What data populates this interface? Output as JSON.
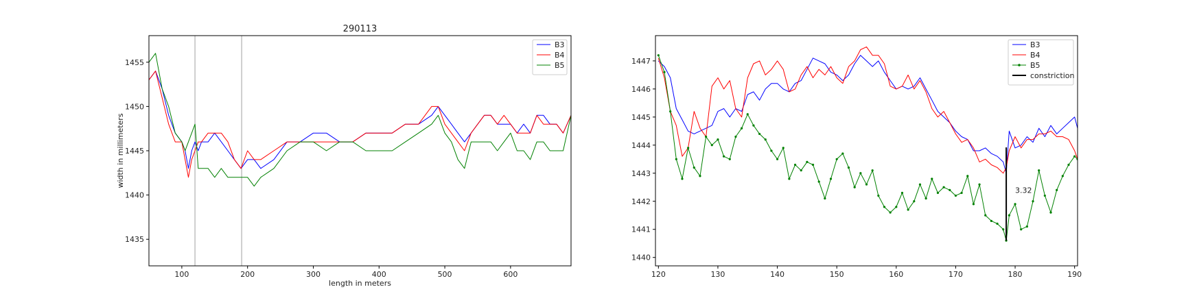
{
  "chart_data": [
    {
      "type": "line",
      "title": "290113",
      "xlabel": "length in meters",
      "ylabel": "width in millimeters",
      "xlim": [
        50,
        692
      ],
      "ylim": [
        1432,
        1458
      ],
      "xticks": [
        100,
        200,
        300,
        400,
        500,
        600
      ],
      "yticks": [
        1435,
        1440,
        1445,
        1450,
        1455
      ],
      "grid": false,
      "legend_position": "top-right",
      "vertical_lines_x": [
        120,
        191
      ],
      "series": [
        {
          "name": "B3",
          "color": "#0000ff",
          "x": [
            50,
            60,
            70,
            80,
            90,
            100,
            105,
            110,
            115,
            120,
            125,
            130,
            140,
            150,
            160,
            170,
            180,
            190,
            200,
            210,
            220,
            240,
            260,
            280,
            300,
            320,
            340,
            360,
            380,
            400,
            420,
            440,
            460,
            480,
            490,
            500,
            510,
            520,
            530,
            540,
            550,
            560,
            570,
            580,
            590,
            600,
            610,
            620,
            630,
            640,
            650,
            660,
            670,
            680,
            692
          ],
          "y": [
            1453,
            1454,
            1452,
            1449,
            1447,
            1446,
            1445,
            1443,
            1445,
            1446,
            1445,
            1446,
            1446,
            1447,
            1446,
            1445,
            1444,
            1443,
            1444,
            1444,
            1443,
            1444,
            1446,
            1446,
            1447,
            1447,
            1446,
            1446,
            1447,
            1447,
            1447,
            1448,
            1448,
            1449,
            1450,
            1449,
            1448,
            1447,
            1446,
            1447,
            1448,
            1449,
            1449,
            1448,
            1448,
            1448,
            1447,
            1448,
            1447,
            1449,
            1449,
            1448,
            1448,
            1447,
            1449
          ]
        },
        {
          "name": "B4",
          "color": "#ff0000",
          "x": [
            50,
            60,
            70,
            80,
            90,
            100,
            105,
            110,
            115,
            120,
            125,
            130,
            140,
            150,
            160,
            170,
            180,
            190,
            200,
            210,
            220,
            240,
            260,
            280,
            300,
            320,
            340,
            360,
            380,
            400,
            420,
            440,
            460,
            480,
            490,
            500,
            510,
            520,
            530,
            540,
            550,
            560,
            570,
            580,
            590,
            600,
            610,
            620,
            630,
            640,
            650,
            660,
            670,
            680,
            692
          ],
          "y": [
            1453,
            1454,
            1451,
            1448,
            1446,
            1446,
            1444,
            1442,
            1444,
            1445,
            1446,
            1446,
            1447,
            1447,
            1447,
            1446,
            1444,
            1443,
            1445,
            1444,
            1444,
            1445,
            1446,
            1446,
            1446,
            1446,
            1446,
            1446,
            1447,
            1447,
            1447,
            1448,
            1448,
            1450,
            1450,
            1448,
            1447,
            1446,
            1445,
            1447,
            1448,
            1449,
            1449,
            1448,
            1449,
            1448,
            1447,
            1447,
            1447,
            1449,
            1448,
            1448,
            1448,
            1447,
            1449
          ]
        },
        {
          "name": "B5",
          "color": "#008000",
          "x": [
            50,
            60,
            70,
            80,
            90,
            100,
            105,
            110,
            115,
            120,
            125,
            130,
            140,
            150,
            160,
            170,
            180,
            190,
            200,
            210,
            220,
            240,
            260,
            280,
            300,
            320,
            340,
            360,
            380,
            400,
            420,
            440,
            460,
            480,
            490,
            500,
            510,
            520,
            530,
            540,
            550,
            560,
            570,
            580,
            590,
            600,
            610,
            620,
            630,
            640,
            650,
            660,
            670,
            680,
            692
          ],
          "y": [
            1455,
            1456,
            1452,
            1450,
            1447,
            1446,
            1445,
            1446,
            1447,
            1448,
            1443,
            1443,
            1443,
            1442,
            1443,
            1442,
            1442,
            1442,
            1442,
            1441,
            1442,
            1443,
            1445,
            1446,
            1446,
            1445,
            1446,
            1446,
            1445,
            1445,
            1445,
            1446,
            1447,
            1448,
            1449,
            1447,
            1446,
            1444,
            1443,
            1446,
            1446,
            1446,
            1446,
            1445,
            1446,
            1447,
            1445,
            1445,
            1444,
            1446,
            1446,
            1445,
            1445,
            1445,
            1449
          ]
        }
      ]
    },
    {
      "type": "line",
      "title": "",
      "xlabel": "",
      "ylabel": "",
      "xlim": [
        119.5,
        190.5
      ],
      "ylim": [
        1439.7,
        1447.9
      ],
      "xticks": [
        120,
        130,
        140,
        150,
        160,
        170,
        180,
        190
      ],
      "yticks": [
        1440,
        1441,
        1442,
        1443,
        1444,
        1445,
        1446,
        1447
      ],
      "grid": false,
      "legend_position": "top-right",
      "annotation": {
        "text": "3.32",
        "x": 180.0,
        "y": 1442.3
      },
      "series": [
        {
          "name": "B3",
          "color": "#0000ff",
          "x": [
            120,
            121,
            122,
            123,
            124,
            125,
            126,
            127,
            128,
            129,
            130,
            131,
            132,
            133,
            134,
            135,
            136,
            137,
            138,
            139,
            140,
            141,
            142,
            143,
            144,
            145,
            146,
            147,
            148,
            149,
            150,
            151,
            152,
            153,
            154,
            155,
            156,
            157,
            158,
            159,
            160,
            161,
            162,
            163,
            164,
            165,
            166,
            167,
            168,
            169,
            170,
            171,
            172,
            173,
            174,
            175,
            176,
            177,
            178,
            178.5,
            179,
            180,
            181,
            182,
            183,
            184,
            185,
            186,
            187,
            188,
            189,
            190,
            190.5
          ],
          "y": [
            1447.0,
            1446.8,
            1446.4,
            1445.3,
            1444.9,
            1444.5,
            1444.4,
            1444.5,
            1444.6,
            1444.7,
            1445.2,
            1445.3,
            1445.0,
            1445.3,
            1445.2,
            1445.8,
            1445.9,
            1445.6,
            1446.0,
            1446.2,
            1446.2,
            1446.0,
            1445.9,
            1446.2,
            1446.3,
            1446.7,
            1447.1,
            1447.0,
            1446.9,
            1446.6,
            1446.5,
            1446.3,
            1446.5,
            1446.9,
            1447.2,
            1447.0,
            1446.8,
            1447.0,
            1446.6,
            1446.3,
            1446.0,
            1446.1,
            1446.0,
            1446.1,
            1446.4,
            1446.0,
            1445.6,
            1445.2,
            1445.0,
            1444.8,
            1444.5,
            1444.3,
            1444.2,
            1443.8,
            1443.8,
            1443.9,
            1443.7,
            1443.6,
            1443.4,
            1443.0,
            1444.5,
            1443.9,
            1444.0,
            1444.3,
            1444.1,
            1444.6,
            1444.3,
            1444.7,
            1444.4,
            1444.6,
            1444.8,
            1445.0,
            1444.6
          ]
        },
        {
          "name": "B4",
          "color": "#ff0000",
          "x": [
            120,
            121,
            122,
            123,
            124,
            125,
            126,
            127,
            128,
            129,
            130,
            131,
            132,
            133,
            134,
            135,
            136,
            137,
            138,
            139,
            140,
            141,
            142,
            143,
            144,
            145,
            146,
            147,
            148,
            149,
            150,
            151,
            152,
            153,
            154,
            155,
            156,
            157,
            158,
            159,
            160,
            161,
            162,
            163,
            164,
            165,
            166,
            167,
            168,
            169,
            170,
            171,
            172,
            173,
            174,
            175,
            176,
            177,
            178,
            178.5,
            179,
            180,
            181,
            182,
            183,
            184,
            185,
            186,
            187,
            188,
            189,
            190,
            190.5
          ],
          "y": [
            1447.1,
            1446.4,
            1445.2,
            1444.7,
            1443.6,
            1443.9,
            1445.2,
            1444.6,
            1444.3,
            1446.1,
            1446.4,
            1446.0,
            1446.3,
            1445.3,
            1445.0,
            1446.4,
            1446.9,
            1447.0,
            1446.5,
            1446.7,
            1447.0,
            1446.7,
            1445.9,
            1446.0,
            1446.5,
            1446.8,
            1446.4,
            1446.7,
            1446.5,
            1446.8,
            1446.4,
            1446.2,
            1446.8,
            1447.0,
            1447.4,
            1447.5,
            1447.2,
            1447.2,
            1446.9,
            1446.1,
            1446.0,
            1446.1,
            1446.5,
            1446.0,
            1446.3,
            1445.9,
            1445.3,
            1445.0,
            1445.2,
            1444.8,
            1444.4,
            1444.1,
            1444.2,
            1443.9,
            1443.4,
            1443.5,
            1443.3,
            1443.2,
            1443.0,
            1443.2,
            1443.8,
            1444.3,
            1443.9,
            1444.2,
            1444.2,
            1444.4,
            1444.4,
            1444.5,
            1444.3,
            1444.3,
            1444.2,
            1443.8,
            1443.5
          ]
        },
        {
          "name": "B5",
          "color": "#008000",
          "x": [
            120,
            121,
            122,
            123,
            124,
            125,
            126,
            127,
            128,
            129,
            130,
            131,
            132,
            133,
            134,
            135,
            136,
            137,
            138,
            139,
            140,
            141,
            142,
            143,
            144,
            145,
            146,
            147,
            148,
            149,
            150,
            151,
            152,
            153,
            154,
            155,
            156,
            157,
            158,
            159,
            160,
            161,
            162,
            163,
            164,
            165,
            166,
            167,
            168,
            169,
            170,
            171,
            172,
            173,
            174,
            175,
            176,
            177,
            178,
            178.5,
            179,
            180,
            181,
            182,
            183,
            184,
            185,
            186,
            187,
            188,
            189,
            190,
            190.5
          ],
          "y": [
            1447.2,
            1446.6,
            1445.2,
            1443.5,
            1442.8,
            1443.9,
            1443.2,
            1442.9,
            1444.3,
            1444.0,
            1444.2,
            1443.6,
            1443.5,
            1444.3,
            1444.6,
            1445.1,
            1444.7,
            1444.4,
            1444.2,
            1443.8,
            1443.5,
            1443.9,
            1442.8,
            1443.3,
            1443.1,
            1443.4,
            1443.3,
            1442.7,
            1442.1,
            1442.8,
            1443.5,
            1443.7,
            1443.2,
            1442.5,
            1443.0,
            1442.6,
            1443.1,
            1442.2,
            1441.8,
            1441.6,
            1441.8,
            1442.3,
            1441.7,
            1442.0,
            1442.6,
            1442.1,
            1442.8,
            1442.3,
            1442.5,
            1442.4,
            1442.2,
            1442.3,
            1442.9,
            1441.9,
            1442.6,
            1441.5,
            1441.3,
            1441.2,
            1441.0,
            1440.6,
            1441.5,
            1441.9,
            1441.0,
            1441.1,
            1442.0,
            1443.1,
            1442.2,
            1441.6,
            1442.4,
            1442.9,
            1443.3,
            1443.6,
            1443.5
          ]
        },
        {
          "name": "constriction",
          "color": "#000000",
          "x": [
            178.5,
            178.5
          ],
          "y": [
            1443.92,
            1440.6
          ]
        }
      ]
    }
  ]
}
